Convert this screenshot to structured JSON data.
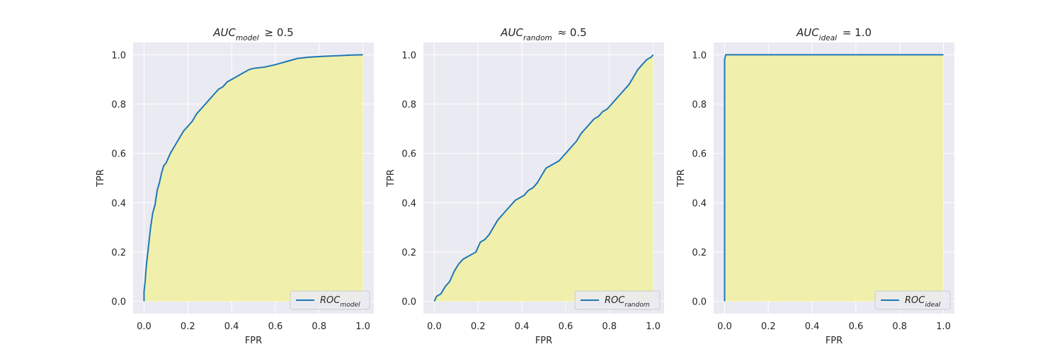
{
  "chart_data": [
    {
      "type": "area",
      "title": {
        "base": "AUC",
        "sub": "model",
        "rest": "≥ 0.5"
      },
      "xlabel": "FPR",
      "ylabel": "TPR",
      "xlim": [
        0,
        1
      ],
      "ylim": [
        0,
        1
      ],
      "xticks": [
        "0.0",
        "0.2",
        "0.4",
        "0.6",
        "0.8",
        "1.0"
      ],
      "yticks": [
        "0.0",
        "0.2",
        "0.4",
        "0.6",
        "0.8",
        "1.0"
      ],
      "grid": true,
      "legend_position": "lower-right",
      "fill_color": "#f0f0a8",
      "line_color": "#1f77b4",
      "series": [
        {
          "name": {
            "base": "ROC",
            "sub": "model"
          },
          "x": [
            0.0,
            0.0,
            0.005,
            0.01,
            0.015,
            0.02,
            0.025,
            0.03,
            0.035,
            0.04,
            0.05,
            0.06,
            0.07,
            0.08,
            0.09,
            0.1,
            0.12,
            0.14,
            0.16,
            0.18,
            0.2,
            0.22,
            0.24,
            0.26,
            0.28,
            0.3,
            0.32,
            0.34,
            0.36,
            0.38,
            0.4,
            0.42,
            0.44,
            0.46,
            0.48,
            0.5,
            0.55,
            0.6,
            0.62,
            0.64,
            0.66,
            0.7,
            0.75,
            0.8,
            0.85,
            0.9,
            0.95,
            1.0
          ],
          "y": [
            0.0,
            0.04,
            0.08,
            0.14,
            0.18,
            0.22,
            0.26,
            0.3,
            0.33,
            0.36,
            0.39,
            0.45,
            0.48,
            0.52,
            0.55,
            0.56,
            0.6,
            0.63,
            0.66,
            0.69,
            0.71,
            0.73,
            0.76,
            0.78,
            0.8,
            0.82,
            0.84,
            0.86,
            0.87,
            0.89,
            0.9,
            0.91,
            0.92,
            0.93,
            0.94,
            0.945,
            0.95,
            0.96,
            0.965,
            0.97,
            0.975,
            0.985,
            0.99,
            0.993,
            0.995,
            0.997,
            0.999,
            1.0
          ]
        }
      ]
    },
    {
      "type": "area",
      "title": {
        "base": "AUC",
        "sub": "random",
        "rest": "≈ 0.5"
      },
      "xlabel": "FPR",
      "ylabel": "TPR",
      "xlim": [
        0,
        1
      ],
      "ylim": [
        0,
        1
      ],
      "xticks": [
        "0.0",
        "0.2",
        "0.4",
        "0.6",
        "0.8",
        "1.0"
      ],
      "yticks": [
        "0.0",
        "0.2",
        "0.4",
        "0.6",
        "0.8",
        "1.0"
      ],
      "grid": true,
      "legend_position": "lower-right",
      "fill_color": "#f0f0a8",
      "line_color": "#1f77b4",
      "series": [
        {
          "name": {
            "base": "ROC",
            "sub": "random"
          },
          "x": [
            0.0,
            0.01,
            0.03,
            0.05,
            0.07,
            0.09,
            0.11,
            0.13,
            0.15,
            0.17,
            0.19,
            0.21,
            0.23,
            0.25,
            0.27,
            0.29,
            0.31,
            0.33,
            0.35,
            0.37,
            0.39,
            0.41,
            0.43,
            0.45,
            0.47,
            0.49,
            0.51,
            0.53,
            0.55,
            0.57,
            0.59,
            0.61,
            0.63,
            0.65,
            0.67,
            0.69,
            0.71,
            0.73,
            0.75,
            0.77,
            0.79,
            0.81,
            0.83,
            0.85,
            0.87,
            0.89,
            0.91,
            0.93,
            0.95,
            0.97,
            0.99,
            1.0
          ],
          "y": [
            0.0,
            0.02,
            0.03,
            0.06,
            0.08,
            0.12,
            0.15,
            0.17,
            0.18,
            0.19,
            0.2,
            0.24,
            0.25,
            0.27,
            0.3,
            0.33,
            0.35,
            0.37,
            0.39,
            0.41,
            0.42,
            0.43,
            0.45,
            0.46,
            0.48,
            0.51,
            0.54,
            0.55,
            0.56,
            0.57,
            0.59,
            0.61,
            0.63,
            0.65,
            0.68,
            0.7,
            0.72,
            0.74,
            0.75,
            0.77,
            0.78,
            0.8,
            0.82,
            0.84,
            0.86,
            0.88,
            0.91,
            0.94,
            0.96,
            0.98,
            0.99,
            1.0
          ]
        }
      ]
    },
    {
      "type": "area",
      "title": {
        "base": "AUC",
        "sub": "ideal",
        "rest": "= 1.0"
      },
      "xlabel": "FPR",
      "ylabel": "TPR",
      "xlim": [
        0,
        1
      ],
      "ylim": [
        0,
        1
      ],
      "xticks": [
        "0.0",
        "0.2",
        "0.4",
        "0.6",
        "0.8",
        "1.0"
      ],
      "yticks": [
        "0.0",
        "0.2",
        "0.4",
        "0.6",
        "0.8",
        "1.0"
      ],
      "grid": true,
      "legend_position": "lower-right",
      "fill_color": "#f0f0a8",
      "line_color": "#1f77b4",
      "series": [
        {
          "name": {
            "base": "ROC",
            "sub": "ideal"
          },
          "x": [
            0.0,
            0.0,
            0.005,
            1.0
          ],
          "y": [
            0.0,
            0.98,
            1.0,
            1.0
          ]
        }
      ]
    }
  ]
}
